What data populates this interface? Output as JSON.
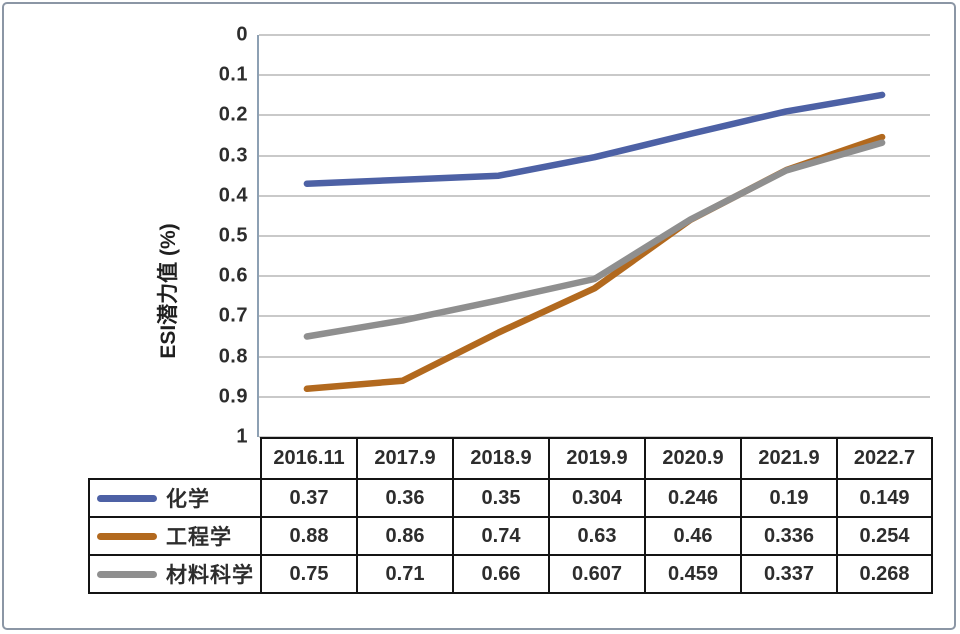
{
  "chart": {
    "y_axis_title": "ESI潜力值 (%)",
    "y_ticks": [
      "0",
      "0.1",
      "0.2",
      "0.3",
      "0.4",
      "0.5",
      "0.6",
      "0.7",
      "0.8",
      "0.9",
      "1"
    ],
    "colors": {
      "gridline": "#c9c9c9",
      "axis_line": "#8da0b3",
      "panel_border": "#8b96a5",
      "table_border": "#141414",
      "text": "#2d2d2d"
    }
  },
  "chart_data": {
    "type": "line",
    "categories": [
      "2016.11",
      "2017.9",
      "2018.9",
      "2019.9",
      "2020.9",
      "2021.9",
      "2022.7"
    ],
    "series": [
      {
        "name": "化学",
        "color": "#4d61a5",
        "values": [
          0.37,
          0.36,
          0.35,
          0.304,
          0.246,
          0.19,
          0.149
        ]
      },
      {
        "name": "工程学",
        "color": "#b2691e",
        "values": [
          0.88,
          0.86,
          0.74,
          0.63,
          0.46,
          0.336,
          0.254
        ]
      },
      {
        "name": "材料科学",
        "color": "#8f8f8f",
        "values": [
          0.75,
          0.71,
          0.66,
          0.607,
          0.459,
          0.337,
          0.268
        ]
      }
    ],
    "title": "",
    "xlabel": "",
    "ylabel": "ESI潜力值 (%)",
    "ylim": [
      0,
      1
    ],
    "y_tick_step": 0.1,
    "y_axis_reversed": true,
    "grid": true,
    "legend_position": "data-table-left-column",
    "data_table_attached": true
  }
}
